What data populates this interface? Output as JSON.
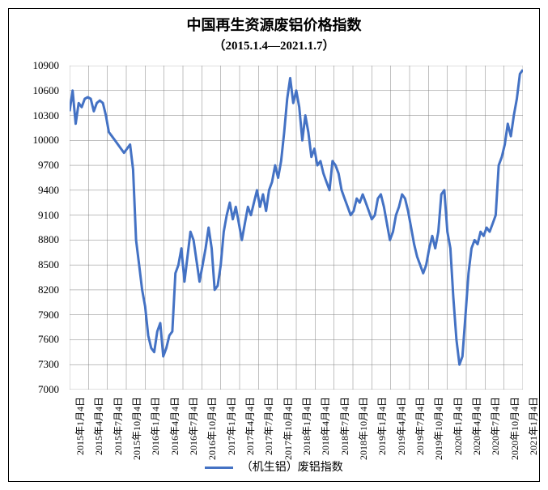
{
  "chart": {
    "type": "line",
    "title": "中国再生资源废铝价格指数",
    "subtitle": "（2015.1.4—2021.1.7）",
    "series_name": "（机生铝）废铝指数",
    "line_color": "#4472c4",
    "line_width": 3,
    "background_color": "#ffffff",
    "grid_color": "#808080",
    "grid_width": 0.5,
    "border_color": "#000000",
    "title_fontsize": 18,
    "subtitle_fontsize": 15,
    "axis_label_fontsize": 13,
    "x_label_fontsize": 12,
    "legend_fontsize": 14,
    "ylim": [
      7000,
      10900
    ],
    "ytick_step": 300,
    "y_ticks": [
      7000,
      7300,
      7600,
      7900,
      8200,
      8500,
      8800,
      9100,
      9400,
      9700,
      10000,
      10300,
      10600,
      10900
    ],
    "x_labels": [
      "2015年1月4日",
      "2015年4月4日",
      "2015年7月4日",
      "2015年10月4日",
      "2016年1月4日",
      "2016年4月4日",
      "2016年7月4日",
      "2016年10月4日",
      "2017年1月4日",
      "2017年4月4日",
      "2017年7月4日",
      "2017年10月4日",
      "2018年1月4日",
      "2018年4月4日",
      "2018年7月4日",
      "2018年10月4日",
      "2019年1月4日",
      "2019年4月4日",
      "2019年7月4日",
      "2019年10月4日",
      "2020年1月4日",
      "2020年4月4日",
      "2020年7月4日",
      "2020年10月4日",
      "2021年1月4日"
    ],
    "values": [
      10350,
      10600,
      10200,
      10450,
      10400,
      10500,
      10520,
      10500,
      10350,
      10450,
      10480,
      10450,
      10300,
      10100,
      10050,
      10000,
      9950,
      9900,
      9850,
      9900,
      9950,
      9650,
      8800,
      8500,
      8200,
      8000,
      7650,
      7500,
      7450,
      7700,
      7800,
      7400,
      7500,
      7650,
      7700,
      8400,
      8500,
      8700,
      8300,
      8600,
      8900,
      8800,
      8550,
      8300,
      8500,
      8700,
      8950,
      8700,
      8200,
      8250,
      8500,
      8900,
      9100,
      9250,
      9050,
      9200,
      9000,
      8800,
      9000,
      9200,
      9100,
      9250,
      9400,
      9200,
      9350,
      9150,
      9400,
      9500,
      9700,
      9550,
      9750,
      10100,
      10500,
      10750,
      10450,
      10600,
      10400,
      10000,
      10300,
      10100,
      9800,
      9900,
      9700,
      9750,
      9600,
      9500,
      9400,
      9750,
      9700,
      9600,
      9400,
      9300,
      9200,
      9100,
      9150,
      9300,
      9250,
      9350,
      9250,
      9150,
      9050,
      9100,
      9300,
      9350,
      9200,
      9000,
      8800,
      8900,
      9100,
      9200,
      9350,
      9300,
      9150,
      8950,
      8750,
      8600,
      8500,
      8400,
      8500,
      8700,
      8850,
      8700,
      8900,
      9350,
      9400,
      8900,
      8700,
      8100,
      7600,
      7300,
      7400,
      7900,
      8400,
      8700,
      8800,
      8750,
      8900,
      8850,
      8950,
      8900,
      9000,
      9100,
      9700,
      9800,
      9950,
      10200,
      10050,
      10300,
      10500,
      10800,
      10850
    ]
  }
}
